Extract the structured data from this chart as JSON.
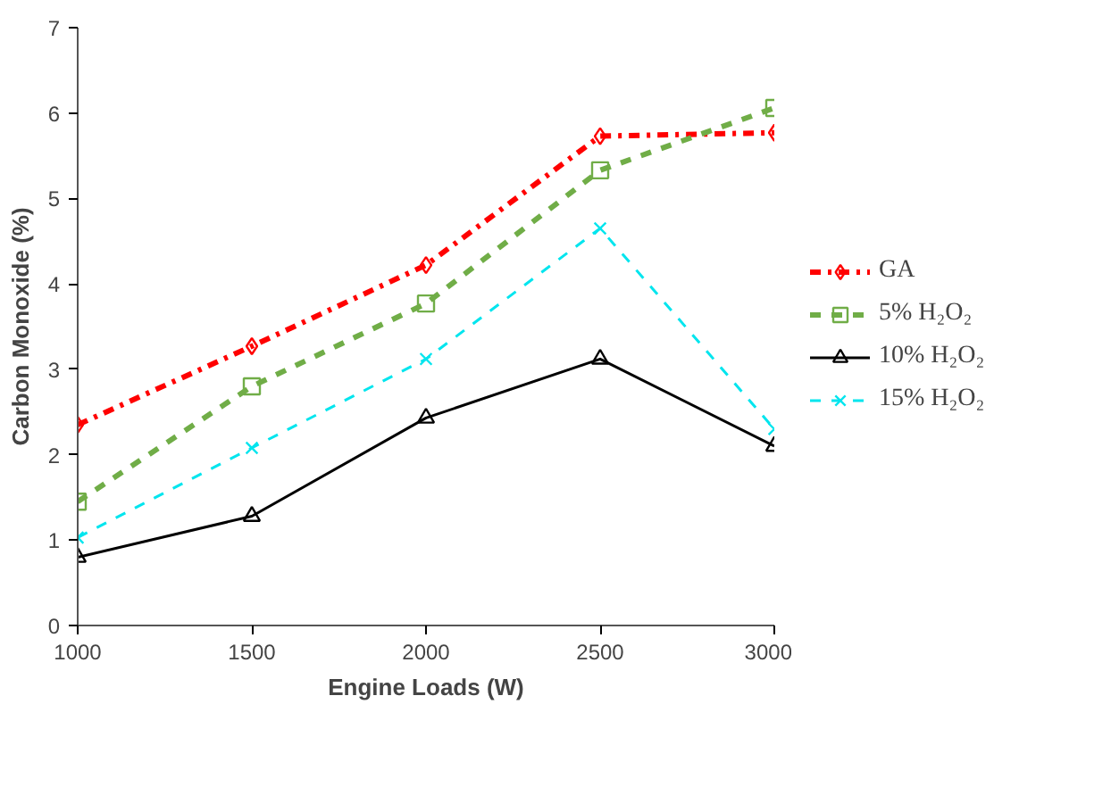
{
  "chart_data": {
    "type": "line",
    "xlabel": "Engine Loads (W)",
    "ylabel": "Carbon Monoxide (%)",
    "x": [
      1000,
      1500,
      2000,
      2500,
      3000
    ],
    "xlim": [
      1000,
      3000
    ],
    "xticks": [
      1000,
      1500,
      2000,
      2500,
      3000
    ],
    "ylim": [
      0,
      7
    ],
    "yticks": [
      0,
      1,
      2,
      3,
      4,
      5,
      6,
      7
    ],
    "grid": false,
    "legend": "right",
    "series": [
      {
        "name": "GA",
        "color": "#ff0000",
        "values": [
          2.35,
          3.27,
          4.22,
          5.73,
          5.77
        ],
        "marker": "diamond",
        "line_style": "dashdot"
      },
      {
        "name": "5% H₂O₂",
        "color": "#70ad47",
        "values": [
          1.45,
          2.8,
          3.77,
          5.33,
          6.06
        ],
        "marker": "square",
        "line_style": "dashed"
      },
      {
        "name": "10% H₂O₂",
        "color": "#000000",
        "values": [
          0.8,
          1.28,
          2.43,
          3.12,
          2.1
        ],
        "marker": "triangle",
        "line_style": "solid"
      },
      {
        "name": "15% H₂O₂",
        "color": "#00e5ee",
        "values": [
          1.03,
          2.08,
          3.12,
          4.65,
          2.3
        ],
        "marker": "cross",
        "line_style": "dashed"
      }
    ]
  }
}
